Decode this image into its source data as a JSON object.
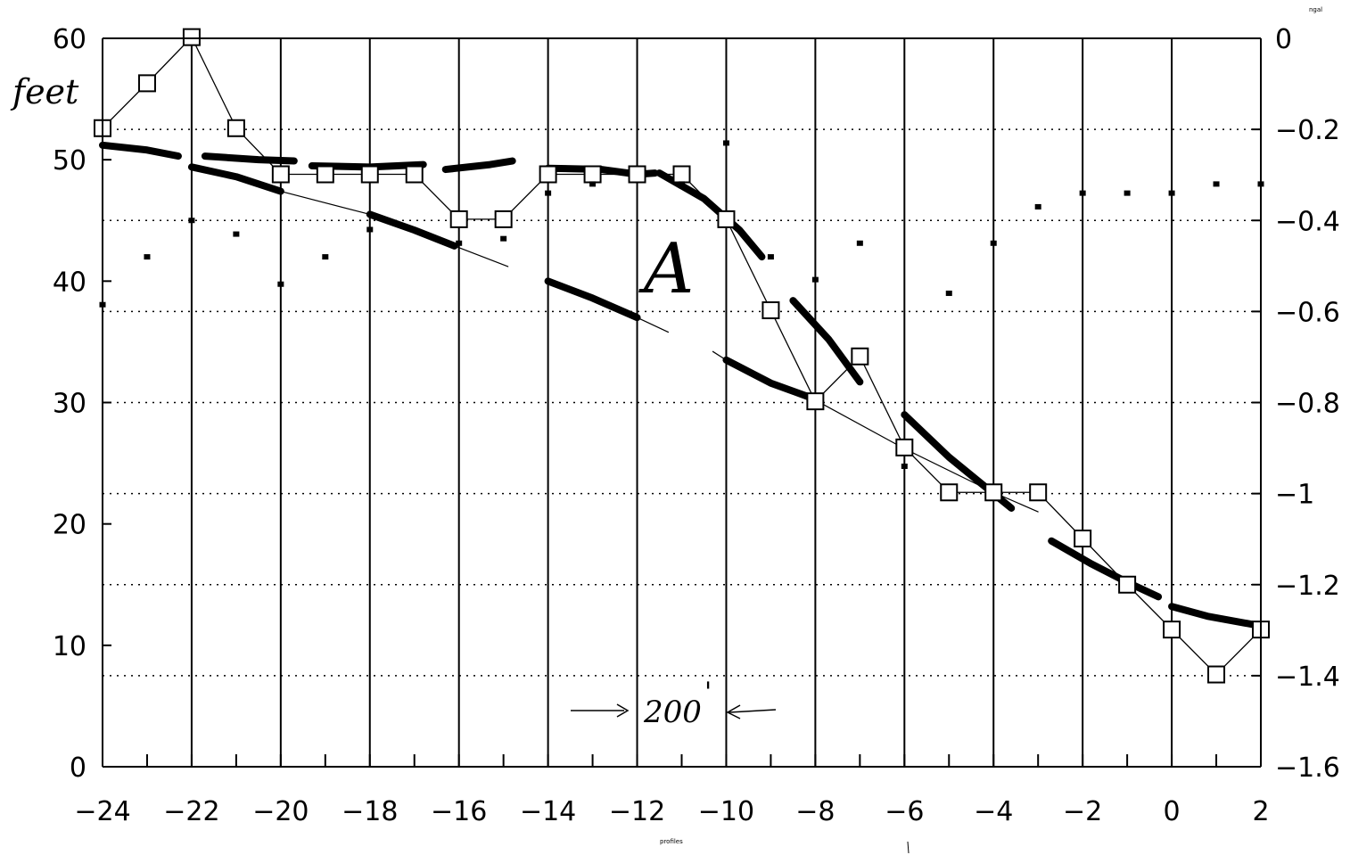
{
  "chart_data": {
    "type": "line",
    "x": [
      -24,
      -23,
      -22,
      -21,
      -20,
      -19,
      -18,
      -17,
      -16,
      -15,
      -14,
      -13,
      -12,
      -11,
      -10,
      -9,
      -8,
      -7,
      -6,
      -5,
      -4,
      -3,
      -2,
      -1,
      0,
      1,
      2
    ],
    "xlim": [
      -24,
      2
    ],
    "xticks": [
      -24,
      -22,
      -20,
      -18,
      -16,
      -14,
      -12,
      -10,
      -8,
      -6,
      -4,
      -2,
      0,
      2
    ],
    "ylim_left": [
      0,
      60
    ],
    "yticks_left": [
      0,
      10,
      20,
      30,
      40,
      50,
      60
    ],
    "ylim_right": [
      -1.6,
      0
    ],
    "yticks_right": [
      0,
      -0.2,
      -0.4,
      -0.6,
      -0.8,
      -1,
      -1.2,
      -1.4,
      -1.6
    ],
    "ylabel_left": "feet",
    "ylabel_right": "ngal",
    "xlabel": "profiles",
    "grid": {
      "vertical": "solid",
      "horizontal": "dotted"
    },
    "series": [
      {
        "marker": "open-square",
        "axis": "left",
        "values": [
          52.6,
          56.3,
          60.1,
          52.6,
          48.8,
          48.8,
          48.8,
          48.8,
          45.1,
          45.1,
          48.8,
          48.8,
          48.8,
          48.8,
          45.1,
          37.6,
          30.1,
          33.8,
          26.3,
          22.6,
          22.6,
          22.6,
          18.8,
          15.0,
          11.3,
          7.6,
          11.3
        ]
      },
      {
        "marker": "small-square",
        "axis": "right",
        "values": [
          -0.585,
          -0.48,
          -0.4,
          -0.43,
          -0.54,
          -0.48,
          -0.42,
          null,
          -0.45,
          -0.44,
          -0.34,
          -0.32,
          null,
          -0.32,
          -0.23,
          -0.48,
          -0.53,
          -0.45,
          -0.94,
          -0.56,
          -0.45,
          -0.37,
          -0.34,
          -0.34,
          -0.34,
          -0.32,
          -0.32
        ]
      }
    ],
    "annotations": [
      {
        "text": "A",
        "x": -10.5,
        "y": 42.5
      },
      {
        "text": "200",
        "x": -10.8,
        "y": 4.3,
        "suffix": "'"
      }
    ],
    "hand_traces": [
      {
        "style": "thick",
        "points": [
          [
            -24,
            51.2
          ],
          [
            -23,
            50.8
          ],
          [
            -22.3,
            50.3
          ]
        ]
      },
      {
        "style": "thick",
        "points": [
          [
            -21.7,
            50.3
          ],
          [
            -20.5,
            50.0
          ],
          [
            -19.7,
            49.9
          ]
        ]
      },
      {
        "style": "thick",
        "points": [
          [
            -19.3,
            49.5
          ],
          [
            -18,
            49.4
          ],
          [
            -16.8,
            49.6
          ]
        ]
      },
      {
        "style": "thick",
        "points": [
          [
            -16.3,
            49.2
          ],
          [
            -15.3,
            49.6
          ],
          [
            -14.8,
            49.9
          ]
        ]
      },
      {
        "style": "thick",
        "points": [
          [
            -14,
            49.3
          ],
          [
            -12.8,
            49.2
          ],
          [
            -12,
            48.8
          ],
          [
            -11.6,
            48.9
          ]
        ]
      },
      {
        "style": "thick",
        "points": [
          [
            -11.5,
            48.9
          ],
          [
            -10.5,
            46.8
          ],
          [
            -9.7,
            44.2
          ],
          [
            -9.2,
            42.0
          ]
        ]
      },
      {
        "style": "thick",
        "points": [
          [
            -22,
            49.4
          ],
          [
            -21,
            48.6
          ],
          [
            -20,
            47.4
          ]
        ]
      },
      {
        "style": "thick",
        "points": [
          [
            -18,
            45.5
          ],
          [
            -17,
            44.2
          ],
          [
            -16.1,
            42.9
          ]
        ]
      },
      {
        "style": "thick",
        "points": [
          [
            -14,
            40.0
          ],
          [
            -13,
            38.6
          ],
          [
            -12,
            37.0
          ]
        ]
      },
      {
        "style": "thick",
        "points": [
          [
            -10,
            33.5
          ],
          [
            -9,
            31.6
          ],
          [
            -8.1,
            30.4
          ]
        ]
      },
      {
        "style": "thick",
        "points": [
          [
            -8.5,
            38.4
          ],
          [
            -7.7,
            35.2
          ],
          [
            -7,
            31.7
          ]
        ]
      },
      {
        "style": "thick",
        "points": [
          [
            -6,
            29.0
          ],
          [
            -5,
            25.5
          ],
          [
            -4,
            22.5
          ],
          [
            -3.6,
            21.3
          ]
        ]
      },
      {
        "style": "thick",
        "points": [
          [
            -2.7,
            18.6
          ],
          [
            -1.8,
            16.7
          ],
          [
            -1,
            15.2
          ],
          [
            -0.3,
            14.0
          ]
        ]
      },
      {
        "style": "thick",
        "points": [
          [
            0,
            13.2
          ],
          [
            0.8,
            12.4
          ],
          [
            2,
            11.6
          ]
        ]
      },
      {
        "style": "thin",
        "points": [
          [
            -20,
            47.4
          ],
          [
            -18,
            45.5
          ]
        ]
      },
      {
        "style": "thin",
        "points": [
          [
            -16.1,
            42.9
          ],
          [
            -14.9,
            41.2
          ]
        ]
      },
      {
        "style": "thin",
        "points": [
          [
            -12,
            37.0
          ],
          [
            -11.3,
            35.8
          ]
        ]
      },
      {
        "style": "thin",
        "points": [
          [
            -10.3,
            34.2
          ],
          [
            -10,
            33.5
          ]
        ]
      },
      {
        "style": "thin",
        "points": [
          [
            -8.1,
            30.4
          ],
          [
            -6,
            26.2
          ],
          [
            -4,
            22.6
          ],
          [
            -3,
            21.0
          ]
        ]
      }
    ]
  },
  "labels": {
    "ylabel_left": "feet",
    "ylabel_right": "ngal",
    "xlabel": "profiles",
    "annotation_A": "A",
    "annotation_dist": "200",
    "annotation_dist_mark": "'"
  }
}
